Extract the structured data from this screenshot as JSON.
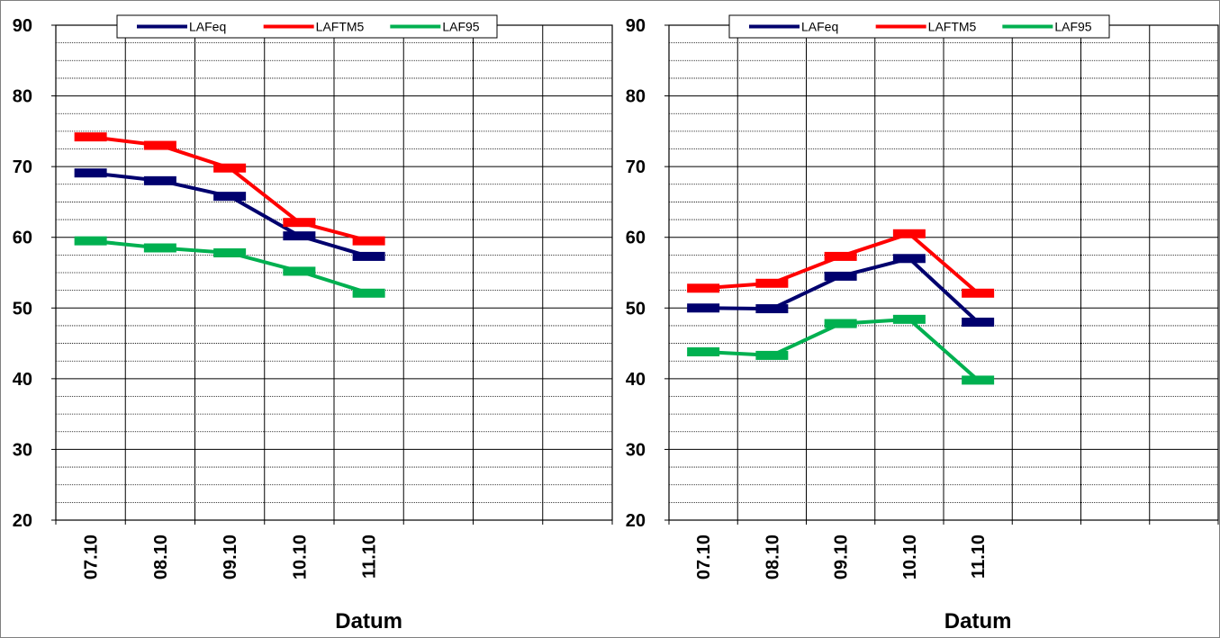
{
  "chart_data": [
    {
      "type": "line",
      "categories": [
        "07.10",
        "08.10",
        "09.10",
        "10.10",
        "11.10"
      ],
      "xlabel": "Datum",
      "ylabel": "",
      "ylim": [
        20,
        90
      ],
      "yticks": [
        "20",
        "30",
        "40",
        "50",
        "60",
        "70",
        "80",
        "90"
      ],
      "grid": true,
      "legend_position": "top",
      "series": [
        {
          "name": "LAFeq",
          "color": "#00006e",
          "values": [
            69.1,
            68.0,
            65.8,
            60.2,
            57.3
          ]
        },
        {
          "name": "LAFTM5",
          "color": "#ff0000",
          "values": [
            74.2,
            73.0,
            69.8,
            62.1,
            59.5
          ]
        },
        {
          "name": "LAF95",
          "color": "#00b050",
          "values": [
            59.5,
            58.5,
            57.8,
            55.2,
            52.1
          ]
        }
      ]
    },
    {
      "type": "line",
      "categories": [
        "07.10",
        "08.10",
        "09.10",
        "10.10",
        "11.10"
      ],
      "xlabel": "Datum",
      "ylabel": "",
      "ylim": [
        20,
        90
      ],
      "yticks": [
        "20",
        "30",
        "40",
        "50",
        "60",
        "70",
        "80",
        "90"
      ],
      "grid": true,
      "legend_position": "top",
      "series": [
        {
          "name": "LAFeq",
          "color": "#00006e",
          "values": [
            50.0,
            49.9,
            54.5,
            57.0,
            48.0
          ]
        },
        {
          "name": "LAFTM5",
          "color": "#ff0000",
          "values": [
            52.8,
            53.5,
            57.3,
            60.5,
            52.1
          ]
        },
        {
          "name": "LAF95",
          "color": "#00b050",
          "values": [
            43.8,
            43.3,
            47.8,
            48.4,
            39.8
          ]
        }
      ]
    }
  ]
}
